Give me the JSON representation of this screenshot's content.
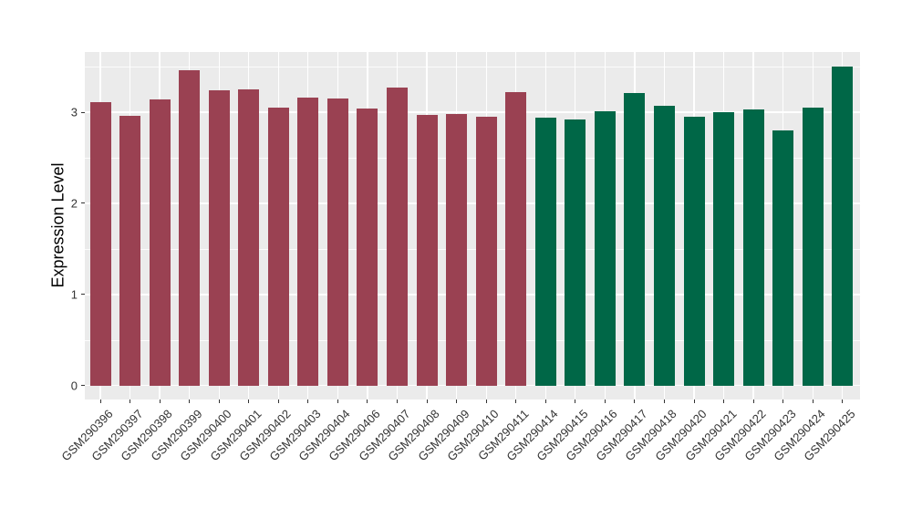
{
  "chart_data": {
    "type": "bar",
    "title": "",
    "xlabel": "",
    "ylabel": "Expression Level",
    "categories": [
      "GSM290396",
      "GSM290397",
      "GSM290398",
      "GSM290399",
      "GSM290400",
      "GSM290401",
      "GSM290402",
      "GSM290403",
      "GSM290404",
      "GSM290406",
      "GSM290407",
      "GSM290408",
      "GSM290409",
      "GSM290410",
      "GSM290411",
      "GSM290414",
      "GSM290415",
      "GSM290416",
      "GSM290417",
      "GSM290418",
      "GSM290420",
      "GSM290421",
      "GSM290422",
      "GSM290423",
      "GSM290424",
      "GSM290425"
    ],
    "values": [
      3.11,
      2.96,
      3.14,
      3.46,
      3.24,
      3.25,
      3.05,
      3.16,
      3.15,
      3.04,
      3.27,
      2.97,
      2.98,
      2.95,
      3.22,
      2.94,
      2.92,
      3.01,
      3.21,
      3.07,
      2.95,
      3.0,
      3.03,
      2.8,
      3.05,
      3.5
    ],
    "bar_colors": [
      "#9A4152",
      "#9A4152",
      "#9A4152",
      "#9A4152",
      "#9A4152",
      "#9A4152",
      "#9A4152",
      "#9A4152",
      "#9A4152",
      "#9A4152",
      "#9A4152",
      "#9A4152",
      "#9A4152",
      "#9A4152",
      "#9A4152",
      "#006747",
      "#006747",
      "#006747",
      "#006747",
      "#006747",
      "#006747",
      "#006747",
      "#006747",
      "#006747",
      "#006747",
      "#006747"
    ],
    "group_colors": {
      "left_group": "#9A4152",
      "right_group": "#006747"
    },
    "yticks": [
      0,
      1,
      2,
      3
    ],
    "ylim": [
      -0.16,
      3.65
    ],
    "grid": "major+minor horizontal, vertical at category centers",
    "legend_position": "none",
    "panel_background": "#EBEBEB",
    "gridline_color": "#FFFFFF",
    "axis_text_color": "#333333",
    "axis_title_color": "#000000"
  }
}
